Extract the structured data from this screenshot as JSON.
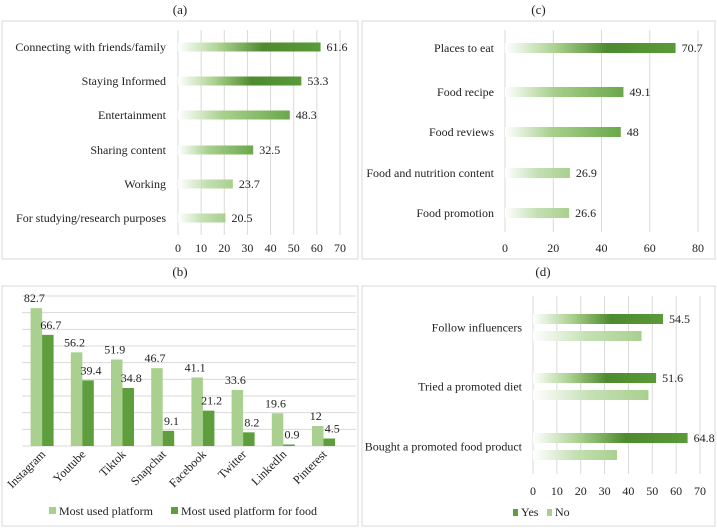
{
  "colors": {
    "dark_green": "#4e8a2e",
    "mid_green": "#70ad47",
    "light_green": "#a9d08e",
    "pale_green": "#c5e0b4"
  },
  "chart_data": [
    {
      "id": "a",
      "title": "(a)",
      "type": "bar",
      "orientation": "horizontal",
      "categories": [
        "Connecting with friends/family",
        "Staying Informed",
        "Entertainment",
        "Sharing content",
        "Working",
        "For studying/research purposes"
      ],
      "values": [
        61.6,
        53.3,
        48.3,
        32.5,
        23.7,
        20.5
      ],
      "xlim": [
        0,
        70
      ],
      "xticks": [
        0,
        10,
        20,
        30,
        40,
        50,
        60,
        70
      ],
      "grid": true
    },
    {
      "id": "b",
      "title": "(b)",
      "type": "bar",
      "orientation": "vertical",
      "categories": [
        "Instagram",
        "Youtube",
        "Tiktok",
        "Snapchat",
        "Facebook",
        "Twitter",
        "LinkedIn",
        "Pinterest"
      ],
      "series": [
        {
          "name": "Most used platform",
          "values": [
            82.7,
            56.2,
            51.9,
            46.7,
            41.1,
            33.6,
            19.6,
            12
          ]
        },
        {
          "name": "Most used platform for food",
          "values": [
            66.7,
            39.4,
            34.8,
            9.1,
            21.2,
            8.2,
            0.9,
            4.5
          ]
        }
      ],
      "ylim": [
        0,
        90
      ],
      "grid": true,
      "legend": "bottom"
    },
    {
      "id": "c",
      "title": "(c)",
      "type": "bar",
      "orientation": "horizontal",
      "categories": [
        "Places to eat",
        "Food recipe",
        "Food reviews",
        "Food and nutrition content",
        "Food promotion"
      ],
      "values": [
        70.7,
        49.1,
        48,
        26.9,
        26.6
      ],
      "xlim": [
        0,
        80
      ],
      "xticks": [
        0,
        20,
        40,
        60,
        80
      ],
      "grid": true
    },
    {
      "id": "d",
      "title": "(d)",
      "type": "bar",
      "orientation": "horizontal",
      "categories": [
        "Follow influencers",
        "Tried a promoted diet",
        "Bought a promoted food product"
      ],
      "series": [
        {
          "name": "Yes",
          "values": [
            54.5,
            51.6,
            64.8
          ],
          "labels": [
            "54.5",
            "51.6",
            "64.8"
          ]
        },
        {
          "name": "No",
          "values": [
            45.5,
            48.4,
            35.2
          ]
        }
      ],
      "xlim": [
        0,
        70
      ],
      "xticks": [
        0,
        10,
        20,
        30,
        40,
        50,
        60,
        70
      ],
      "grid": true,
      "legend": "bottom"
    }
  ]
}
